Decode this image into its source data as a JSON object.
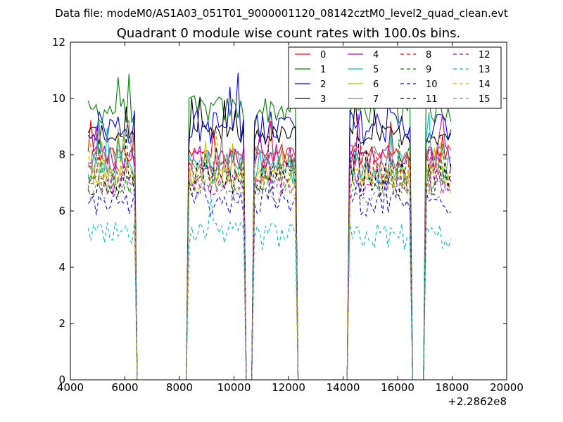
{
  "chart_data": {
    "type": "line",
    "suptitle": "Data file: modeM0/AS1A03_051T01_9000001120_08142cztM0_level2_quad_clean.evt",
    "title": "Quadrant 0 module wise count rates with 100.0s bins.",
    "xlabel": "",
    "ylabel": "",
    "x_offset_label": "+2.2862e8",
    "xlim": [
      4000,
      20000
    ],
    "ylim": [
      0,
      12
    ],
    "xticks": [
      4000,
      6000,
      8000,
      10000,
      12000,
      14000,
      16000,
      18000,
      20000
    ],
    "xtick_labels": [
      "4000",
      "6000",
      "8000",
      "10000",
      "12000",
      "14000",
      "16000",
      "18000",
      "20000"
    ],
    "yticks": [
      0,
      2,
      4,
      6,
      8,
      10,
      12
    ],
    "ytick_labels": [
      "0",
      "2",
      "4",
      "6",
      "8",
      "10",
      "12"
    ],
    "legend_position": "top-right",
    "bin_seconds": 100,
    "active_segments": [
      [
        4650,
        6400
      ],
      [
        8350,
        10350
      ],
      [
        10750,
        12250
      ],
      [
        14250,
        16450
      ],
      [
        17050,
        18000
      ]
    ],
    "series": [
      {
        "name": "0",
        "color": "#ff0000",
        "dash": "solid",
        "level": 8.0
      },
      {
        "name": "1",
        "color": "#008000",
        "dash": "solid",
        "level": 9.6
      },
      {
        "name": "2",
        "color": "#0000ff",
        "dash": "solid",
        "level": 9.0
      },
      {
        "name": "3",
        "color": "#000000",
        "dash": "solid",
        "level": 8.7
      },
      {
        "name": "4",
        "color": "#bf00bf",
        "dash": "solid",
        "level": 7.9
      },
      {
        "name": "5",
        "color": "#00bfbf",
        "dash": "solid",
        "level": 7.6
      },
      {
        "name": "6",
        "color": "#bfbf00",
        "dash": "solid",
        "level": 7.3
      },
      {
        "name": "7",
        "color": "#808080",
        "dash": "solid",
        "level": 7.8
      },
      {
        "name": "8",
        "color": "#ff0000",
        "dash": "dashed",
        "level": 7.5
      },
      {
        "name": "9",
        "color": "#008000",
        "dash": "dashed",
        "level": 7.0
      },
      {
        "name": "10",
        "color": "#0000ff",
        "dash": "dashed",
        "level": 6.3
      },
      {
        "name": "11",
        "color": "#000000",
        "dash": "dashed",
        "level": 7.1
      },
      {
        "name": "12",
        "color": "#bf00bf",
        "dash": "dashed",
        "level": 6.9
      },
      {
        "name": "13",
        "color": "#00bfbf",
        "dash": "dashed",
        "level": 5.1
      },
      {
        "name": "14",
        "color": "#bfbf00",
        "dash": "dashed",
        "level": 7.2
      },
      {
        "name": "15",
        "color": "#808080",
        "dash": "dashed",
        "level": 6.6
      }
    ]
  }
}
